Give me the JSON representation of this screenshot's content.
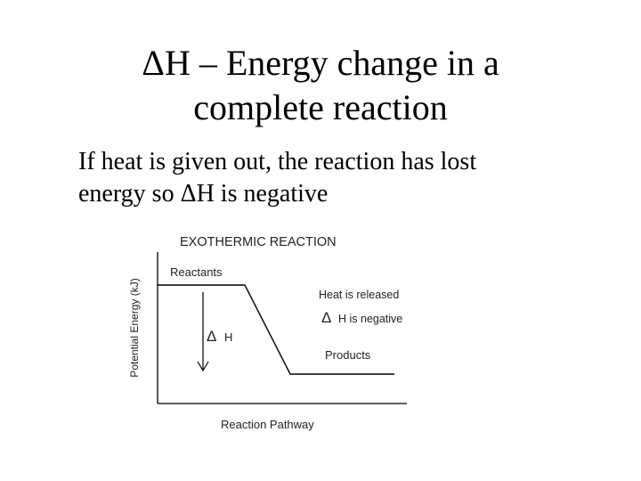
{
  "slide": {
    "title_line1": "ΔH – Energy change in a",
    "title_line2": "complete reaction",
    "body_line1": "If heat is given out, the reaction has lost",
    "body_line2": "energy so ΔH is negative"
  },
  "diagram": {
    "title": "EXOTHERMIC REACTION",
    "y_axis_label": "Potential Energy (kJ)",
    "x_axis_label": "Reaction Pathway",
    "reactants_label": "Reactants",
    "products_label": "Products",
    "heat_label": "Heat is released",
    "delta_symbol": "Δ",
    "delta_h_label": "H",
    "negative_label": "H is negative",
    "negative_delta_symbol": "Δ",
    "line_color": "#000000"
  }
}
